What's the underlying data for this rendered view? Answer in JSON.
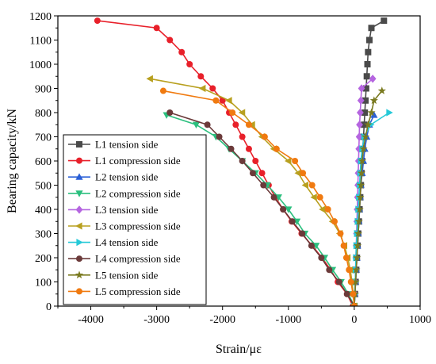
{
  "chart_data": {
    "type": "line",
    "title": "",
    "xlabel": "Strain/με",
    "ylabel": "Bearing capacity/kN",
    "xlim": [
      -4500,
      1000
    ],
    "ylim": [
      0,
      1200
    ],
    "xticks": [
      -4000,
      -3000,
      -2000,
      -1000,
      0,
      1000
    ],
    "xtick_labels": [
      "-4000",
      "-3000",
      "-2000",
      "-1000",
      "0",
      "1000"
    ],
    "yticks": [
      0,
      100,
      200,
      300,
      400,
      500,
      600,
      700,
      800,
      900,
      1000,
      1100,
      1200
    ],
    "ytick_labels": [
      "0",
      "100",
      "200",
      "300",
      "400",
      "500",
      "600",
      "700",
      "800",
      "900",
      "1000",
      "1100",
      "1200"
    ],
    "grid": false,
    "legend_position": "bottom-left",
    "series": [
      {
        "name": "L1 tension side",
        "color": "#4a4a4a",
        "marker": "square",
        "points": [
          [
            0,
            0
          ],
          [
            10,
            50
          ],
          [
            20,
            100
          ],
          [
            30,
            150
          ],
          [
            40,
            200
          ],
          [
            50,
            250
          ],
          [
            60,
            300
          ],
          [
            70,
            350
          ],
          [
            80,
            400
          ],
          [
            90,
            450
          ],
          [
            100,
            500
          ],
          [
            110,
            550
          ],
          [
            120,
            600
          ],
          [
            130,
            650
          ],
          [
            140,
            700
          ],
          [
            150,
            750
          ],
          [
            160,
            800
          ],
          [
            170,
            850
          ],
          [
            180,
            900
          ],
          [
            190,
            950
          ],
          [
            200,
            1000
          ],
          [
            210,
            1050
          ],
          [
            230,
            1100
          ],
          [
            260,
            1150
          ],
          [
            450,
            1180
          ]
        ]
      },
      {
        "name": "L1 compression side",
        "color": "#e8202a",
        "marker": "circle",
        "points": [
          [
            -3900,
            1180
          ],
          [
            -3000,
            1150
          ],
          [
            -2800,
            1100
          ],
          [
            -2620,
            1050
          ],
          [
            -2500,
            1000
          ],
          [
            -2330,
            950
          ],
          [
            -2150,
            900
          ],
          [
            -2000,
            850
          ],
          [
            -1900,
            800
          ],
          [
            -1800,
            750
          ],
          [
            -1700,
            700
          ],
          [
            -1600,
            650
          ],
          [
            -1500,
            600
          ],
          [
            -1400,
            550
          ],
          [
            -1300,
            500
          ],
          [
            -1200,
            450
          ],
          [
            -1080,
            400
          ],
          [
            -950,
            350
          ],
          [
            -800,
            300
          ],
          [
            -640,
            250
          ],
          [
            -490,
            200
          ],
          [
            -360,
            150
          ],
          [
            -250,
            100
          ],
          [
            -110,
            50
          ],
          [
            -20,
            0
          ]
        ]
      },
      {
        "name": "L2 tension side",
        "color": "#2a5fd6",
        "marker": "triangle-up",
        "points": [
          [
            0,
            0
          ],
          [
            10,
            50
          ],
          [
            20,
            100
          ],
          [
            30,
            150
          ],
          [
            40,
            200
          ],
          [
            50,
            250
          ],
          [
            60,
            300
          ],
          [
            70,
            350
          ],
          [
            80,
            400
          ],
          [
            90,
            450
          ],
          [
            100,
            500
          ],
          [
            120,
            550
          ],
          [
            140,
            600
          ],
          [
            160,
            650
          ],
          [
            190,
            700
          ],
          [
            230,
            750
          ],
          [
            300,
            790
          ]
        ]
      },
      {
        "name": "L2 compression side",
        "color": "#2bbf7e",
        "marker": "triangle-down",
        "points": [
          [
            -2850,
            790
          ],
          [
            -2400,
            750
          ],
          [
            -2100,
            700
          ],
          [
            -1900,
            650
          ],
          [
            -1700,
            600
          ],
          [
            -1500,
            550
          ],
          [
            -1320,
            500
          ],
          [
            -1150,
            450
          ],
          [
            -1000,
            400
          ],
          [
            -870,
            350
          ],
          [
            -750,
            300
          ],
          [
            -580,
            250
          ],
          [
            -450,
            200
          ],
          [
            -330,
            150
          ],
          [
            -200,
            100
          ],
          [
            -90,
            50
          ],
          [
            0,
            0
          ]
        ]
      },
      {
        "name": "L3 tension side",
        "color": "#b565e0",
        "marker": "diamond",
        "points": [
          [
            0,
            0
          ],
          [
            10,
            50
          ],
          [
            15,
            100
          ],
          [
            20,
            150
          ],
          [
            25,
            200
          ],
          [
            30,
            250
          ],
          [
            35,
            300
          ],
          [
            40,
            350
          ],
          [
            45,
            400
          ],
          [
            50,
            450
          ],
          [
            55,
            500
          ],
          [
            60,
            550
          ],
          [
            65,
            600
          ],
          [
            70,
            650
          ],
          [
            75,
            700
          ],
          [
            80,
            750
          ],
          [
            90,
            800
          ],
          [
            100,
            850
          ],
          [
            110,
            900
          ],
          [
            280,
            940
          ]
        ]
      },
      {
        "name": "L3 compression side",
        "color": "#b8a01f",
        "marker": "triangle-left",
        "points": [
          [
            -3100,
            940
          ],
          [
            -2300,
            900
          ],
          [
            -1900,
            850
          ],
          [
            -1700,
            800
          ],
          [
            -1550,
            750
          ],
          [
            -1400,
            700
          ],
          [
            -1220,
            650
          ],
          [
            -1000,
            600
          ],
          [
            -850,
            550
          ],
          [
            -740,
            500
          ],
          [
            -610,
            450
          ],
          [
            -480,
            400
          ],
          [
            -330,
            350
          ],
          [
            -220,
            300
          ],
          [
            -150,
            250
          ],
          [
            -100,
            200
          ],
          [
            -60,
            150
          ],
          [
            -35,
            100
          ],
          [
            -15,
            50
          ],
          [
            0,
            0
          ]
        ]
      },
      {
        "name": "L4 tension side",
        "color": "#25c9d8",
        "marker": "triangle-right",
        "points": [
          [
            0,
            0
          ],
          [
            10,
            50
          ],
          [
            15,
            100
          ],
          [
            20,
            150
          ],
          [
            25,
            200
          ],
          [
            30,
            250
          ],
          [
            40,
            300
          ],
          [
            50,
            350
          ],
          [
            60,
            400
          ],
          [
            70,
            450
          ],
          [
            80,
            500
          ],
          [
            90,
            550
          ],
          [
            100,
            600
          ],
          [
            120,
            650
          ],
          [
            150,
            700
          ],
          [
            250,
            750
          ],
          [
            530,
            800
          ]
        ]
      },
      {
        "name": "L4 compression side",
        "color": "#6b3a3a",
        "marker": "circle",
        "points": [
          [
            -2800,
            800
          ],
          [
            -2230,
            750
          ],
          [
            -2050,
            700
          ],
          [
            -1870,
            650
          ],
          [
            -1700,
            600
          ],
          [
            -1540,
            550
          ],
          [
            -1380,
            500
          ],
          [
            -1220,
            450
          ],
          [
            -1080,
            400
          ],
          [
            -940,
            350
          ],
          [
            -790,
            300
          ],
          [
            -650,
            250
          ],
          [
            -500,
            200
          ],
          [
            -380,
            150
          ],
          [
            -230,
            100
          ],
          [
            -110,
            50
          ],
          [
            0,
            0
          ]
        ]
      },
      {
        "name": "L5 tension side",
        "color": "#7a7a20",
        "marker": "star",
        "points": [
          [
            0,
            0
          ],
          [
            10,
            50
          ],
          [
            20,
            100
          ],
          [
            30,
            150
          ],
          [
            40,
            200
          ],
          [
            50,
            250
          ],
          [
            60,
            300
          ],
          [
            70,
            350
          ],
          [
            80,
            400
          ],
          [
            90,
            450
          ],
          [
            100,
            500
          ],
          [
            110,
            550
          ],
          [
            120,
            600
          ],
          [
            140,
            650
          ],
          [
            170,
            700
          ],
          [
            210,
            750
          ],
          [
            260,
            800
          ],
          [
            300,
            850
          ],
          [
            420,
            890
          ]
        ]
      },
      {
        "name": "L5 compression side",
        "color": "#f07a10",
        "marker": "circle",
        "points": [
          [
            -2900,
            890
          ],
          [
            -2100,
            850
          ],
          [
            -1850,
            800
          ],
          [
            -1600,
            750
          ],
          [
            -1360,
            700
          ],
          [
            -1180,
            650
          ],
          [
            -900,
            600
          ],
          [
            -780,
            550
          ],
          [
            -640,
            500
          ],
          [
            -520,
            450
          ],
          [
            -400,
            400
          ],
          [
            -300,
            350
          ],
          [
            -210,
            300
          ],
          [
            -160,
            250
          ],
          [
            -120,
            200
          ],
          [
            -80,
            150
          ],
          [
            -50,
            100
          ],
          [
            -20,
            50
          ],
          [
            0,
            0
          ]
        ]
      }
    ]
  }
}
